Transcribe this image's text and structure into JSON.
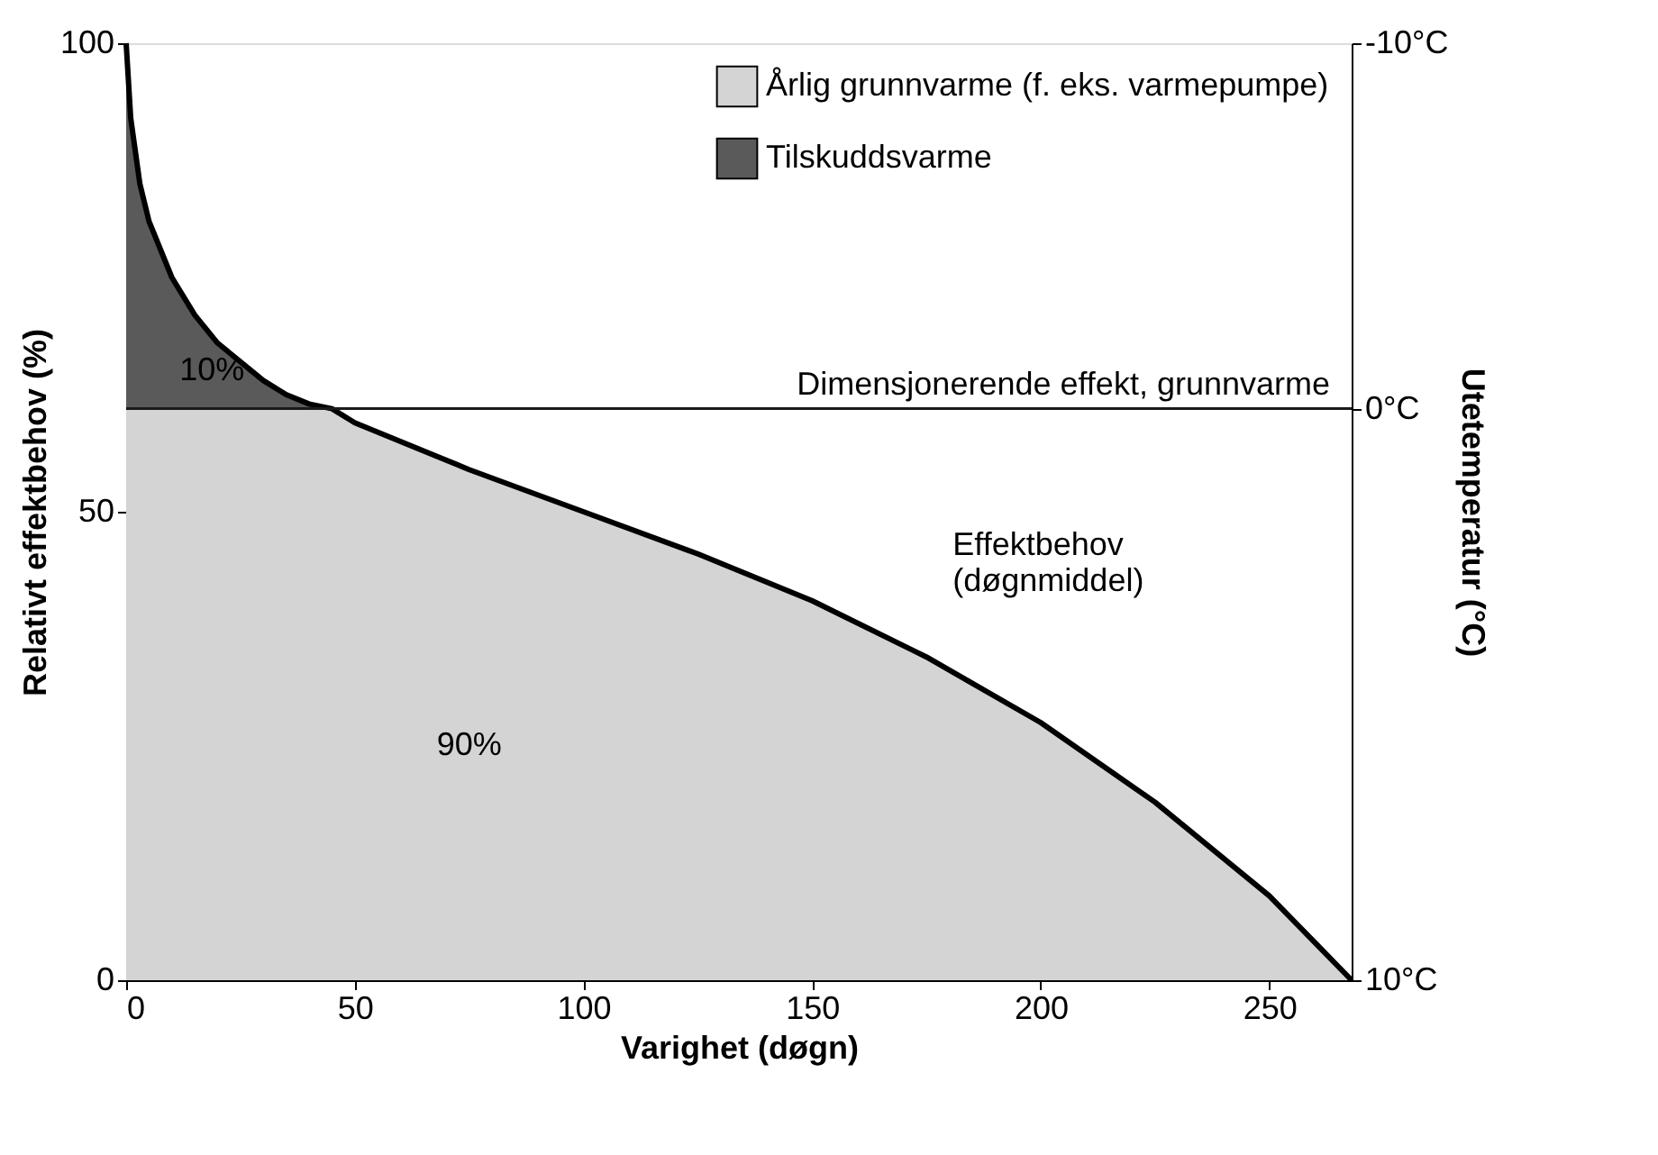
{
  "chart_data": {
    "type": "area",
    "stacked": true,
    "xlabel": "Varighet (døgn)",
    "ylabel": "Relativt effektbehov (%)",
    "y2label": "Utetemperatur (°C)",
    "x": [
      0,
      1,
      3,
      5,
      10,
      15,
      20,
      25,
      30,
      35,
      40,
      45,
      50,
      75,
      100,
      125,
      150,
      175,
      200,
      225,
      250,
      260,
      268
    ],
    "series": [
      {
        "name": "Årlig grunnvarme (f. eks. varmepumpe)",
        "color": "#d4d4d4",
        "values": [
          61,
          61,
          61,
          61,
          61,
          61,
          61,
          61,
          61,
          61,
          61,
          61,
          59.5,
          54.5,
          50,
          45.5,
          40.5,
          34.5,
          27.5,
          19,
          9,
          4,
          0
        ]
      },
      {
        "name": "Tilskuddsvarme",
        "color": "#5a5a5a",
        "values": [
          39,
          31,
          24,
          20,
          14,
          10,
          7,
          5,
          3,
          1.5,
          0.5,
          0,
          0,
          0,
          0,
          0,
          0,
          0,
          0,
          0,
          0,
          0,
          0
        ]
      }
    ],
    "xlim": [
      0,
      268
    ],
    "xticks": [
      0,
      50,
      100,
      150,
      200,
      250
    ],
    "ylim": [
      0,
      100
    ],
    "yticks": [
      0,
      50,
      100
    ],
    "ref_lines": [
      {
        "axis": "y",
        "value": 61,
        "label": "Dimensjonerende effekt, grunnvarme",
        "color": "#1a1a1a"
      }
    ],
    "annotations": [
      "10%",
      "90%",
      {
        "text": "Effektbehov (døgnmiddel)",
        "x": 165,
        "y": 36
      },
      "-10°C",
      "0°C",
      "10°C"
    ],
    "grid": false,
    "legend": "top right"
  }
}
